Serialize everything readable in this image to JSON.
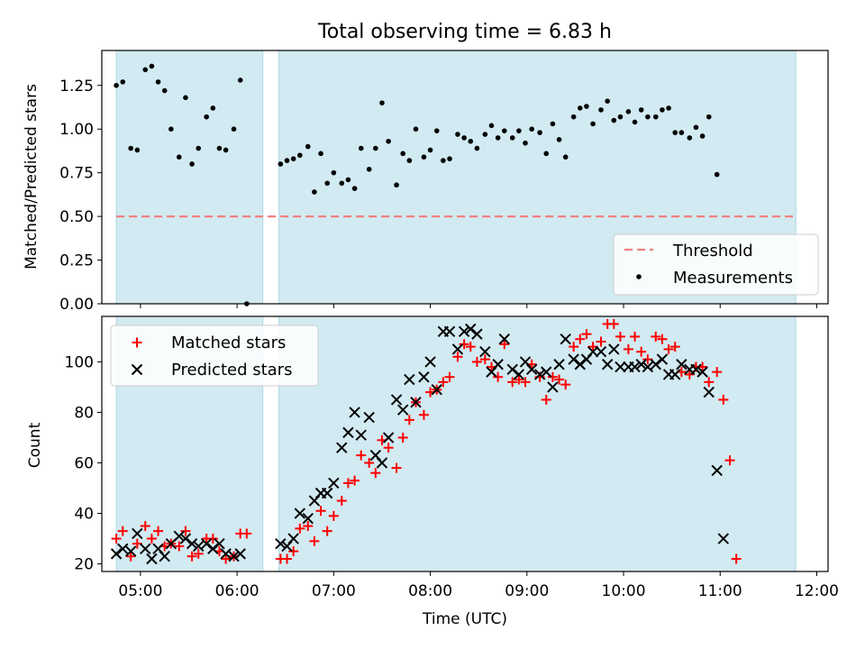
{
  "figure": {
    "title": "Total observing time = 6.83 h",
    "xlabel": "Time (UTC)",
    "x_ticks": [
      "05:00",
      "06:00",
      "07:00",
      "08:00",
      "09:00",
      "10:00",
      "11:00",
      "12:00"
    ]
  },
  "colors": {
    "span": "#add8e6",
    "threshold": "#f08080",
    "matched": "#ff0000",
    "predicted": "#000000",
    "points": "#000000"
  },
  "chart_data": [
    {
      "type": "scatter",
      "ylabel": "Matched/Predicted stars",
      "xlim": [
        "04:36",
        "12:07"
      ],
      "ylim": [
        0,
        1.45
      ],
      "y_ticks": [
        "0.00",
        "0.25",
        "0.50",
        "0.75",
        "1.00",
        "1.25"
      ],
      "observing_spans": [
        [
          "04:45",
          "06:16"
        ],
        [
          "06:26",
          "11:47"
        ]
      ],
      "threshold": 0.5,
      "legend_position": "bottom-right",
      "legend": [
        "Threshold",
        "Measurements"
      ],
      "series": [
        {
          "name": "Measurements",
          "points": [
            [
              "04:45",
              1.25
            ],
            [
              "04:49",
              1.27
            ],
            [
              "04:54",
              0.89
            ],
            [
              "04:58",
              0.88
            ],
            [
              "05:03",
              1.34
            ],
            [
              "05:07",
              1.36
            ],
            [
              "05:11",
              1.27
            ],
            [
              "05:15",
              1.22
            ],
            [
              "05:19",
              1.0
            ],
            [
              "05:24",
              0.84
            ],
            [
              "05:28",
              1.18
            ],
            [
              "05:32",
              0.8
            ],
            [
              "05:36",
              0.89
            ],
            [
              "05:41",
              1.07
            ],
            [
              "05:45",
              1.12
            ],
            [
              "05:49",
              0.89
            ],
            [
              "05:53",
              0.88
            ],
            [
              "05:58",
              1.0
            ],
            [
              "06:02",
              1.28
            ],
            [
              "06:06",
              0.0
            ],
            [
              "06:27",
              0.8
            ],
            [
              "06:31",
              0.82
            ],
            [
              "06:35",
              0.83
            ],
            [
              "06:39",
              0.85
            ],
            [
              "06:44",
              0.9
            ],
            [
              "06:48",
              0.64
            ],
            [
              "06:52",
              0.86
            ],
            [
              "06:56",
              0.69
            ],
            [
              "07:00",
              0.75
            ],
            [
              "07:05",
              0.69
            ],
            [
              "07:09",
              0.71
            ],
            [
              "07:13",
              0.66
            ],
            [
              "07:17",
              0.89
            ],
            [
              "07:22",
              0.77
            ],
            [
              "07:26",
              0.89
            ],
            [
              "07:30",
              1.15
            ],
            [
              "07:34",
              0.93
            ],
            [
              "07:39",
              0.68
            ],
            [
              "07:43",
              0.86
            ],
            [
              "07:47",
              0.82
            ],
            [
              "07:51",
              1.0
            ],
            [
              "07:56",
              0.84
            ],
            [
              "08:00",
              0.88
            ],
            [
              "08:04",
              0.99
            ],
            [
              "08:08",
              0.82
            ],
            [
              "08:12",
              0.83
            ],
            [
              "08:17",
              0.97
            ],
            [
              "08:21",
              0.95
            ],
            [
              "08:25",
              0.93
            ],
            [
              "08:29",
              0.89
            ],
            [
              "08:34",
              0.97
            ],
            [
              "08:38",
              1.02
            ],
            [
              "08:42",
              0.95
            ],
            [
              "08:46",
              0.99
            ],
            [
              "08:51",
              0.95
            ],
            [
              "08:55",
              0.99
            ],
            [
              "08:59",
              0.92
            ],
            [
              "09:03",
              1.0
            ],
            [
              "09:08",
              0.98
            ],
            [
              "09:12",
              0.86
            ],
            [
              "09:16",
              1.03
            ],
            [
              "09:20",
              0.94
            ],
            [
              "09:24",
              0.84
            ],
            [
              "09:29",
              1.07
            ],
            [
              "09:33",
              1.12
            ],
            [
              "09:37",
              1.13
            ],
            [
              "09:41",
              1.03
            ],
            [
              "09:46",
              1.11
            ],
            [
              "09:50",
              1.16
            ],
            [
              "09:54",
              1.05
            ],
            [
              "09:58",
              1.07
            ],
            [
              "10:03",
              1.1
            ],
            [
              "10:07",
              1.04
            ],
            [
              "10:11",
              1.11
            ],
            [
              "10:15",
              1.07
            ],
            [
              "10:20",
              1.07
            ],
            [
              "10:24",
              1.11
            ],
            [
              "10:28",
              1.12
            ],
            [
              "10:32",
              0.98
            ],
            [
              "10:36",
              0.98
            ],
            [
              "10:41",
              0.95
            ],
            [
              "10:45",
              1.01
            ],
            [
              "10:49",
              0.96
            ],
            [
              "10:53",
              1.07
            ],
            [
              "10:58",
              0.74
            ]
          ]
        }
      ]
    },
    {
      "type": "scatter",
      "ylabel": "Count",
      "xlim": [
        "04:36",
        "12:07"
      ],
      "ylim": [
        17,
        118
      ],
      "y_ticks": [
        "20",
        "40",
        "60",
        "80",
        "100"
      ],
      "observing_spans": [
        [
          "04:45",
          "06:16"
        ],
        [
          "06:26",
          "11:47"
        ]
      ],
      "legend_position": "top-left",
      "legend": [
        "Matched stars",
        "Predicted stars"
      ],
      "series": [
        {
          "name": "Matched stars",
          "marker": "+",
          "points": [
            [
              "04:45",
              30
            ],
            [
              "04:49",
              33
            ],
            [
              "04:54",
              23
            ],
            [
              "04:58",
              28
            ],
            [
              "05:03",
              35
            ],
            [
              "05:07",
              30
            ],
            [
              "05:11",
              33
            ],
            [
              "05:15",
              27
            ],
            [
              "05:19",
              28
            ],
            [
              "05:24",
              27
            ],
            [
              "05:28",
              33
            ],
            [
              "05:32",
              23
            ],
            [
              "05:36",
              24
            ],
            [
              "05:41",
              30
            ],
            [
              "05:45",
              30
            ],
            [
              "05:49",
              25
            ],
            [
              "05:53",
              22
            ],
            [
              "05:58",
              23
            ],
            [
              "06:02",
              32
            ],
            [
              "06:06",
              32
            ],
            [
              "06:27",
              22
            ],
            [
              "06:31",
              22
            ],
            [
              "06:35",
              25
            ],
            [
              "06:39",
              34
            ],
            [
              "06:44",
              35
            ],
            [
              "06:48",
              29
            ],
            [
              "06:52",
              41
            ],
            [
              "06:56",
              33
            ],
            [
              "07:00",
              39
            ],
            [
              "07:05",
              45
            ],
            [
              "07:09",
              52
            ],
            [
              "07:13",
              53
            ],
            [
              "07:17",
              63
            ],
            [
              "07:22",
              60
            ],
            [
              "07:26",
              56
            ],
            [
              "07:30",
              69
            ],
            [
              "07:34",
              66
            ],
            [
              "07:39",
              58
            ],
            [
              "07:43",
              70
            ],
            [
              "07:47",
              77
            ],
            [
              "07:51",
              84
            ],
            [
              "07:56",
              79
            ],
            [
              "08:00",
              88
            ],
            [
              "08:04",
              89
            ],
            [
              "08:08",
              92
            ],
            [
              "08:12",
              94
            ],
            [
              "08:17",
              102
            ],
            [
              "08:21",
              107
            ],
            [
              "08:25",
              106
            ],
            [
              "08:29",
              100
            ],
            [
              "08:34",
              101
            ],
            [
              "08:38",
              98
            ],
            [
              "08:42",
              94
            ],
            [
              "08:46",
              107
            ],
            [
              "08:51",
              92
            ],
            [
              "08:55",
              93
            ],
            [
              "08:59",
              92
            ],
            [
              "09:03",
              99
            ],
            [
              "09:08",
              94
            ],
            [
              "09:12",
              85
            ],
            [
              "09:16",
              94
            ],
            [
              "09:20",
              93
            ],
            [
              "09:24",
              91
            ],
            [
              "09:29",
              106
            ],
            [
              "09:33",
              109
            ],
            [
              "09:37",
              111
            ],
            [
              "09:41",
              106
            ],
            [
              "09:46",
              108
            ],
            [
              "09:50",
              115
            ],
            [
              "09:54",
              115
            ],
            [
              "09:58",
              110
            ],
            [
              "10:03",
              105
            ],
            [
              "10:07",
              110
            ],
            [
              "10:11",
              104
            ],
            [
              "10:15",
              101
            ],
            [
              "10:20",
              110
            ],
            [
              "10:24",
              109
            ],
            [
              "10:28",
              105
            ],
            [
              "10:32",
              106
            ],
            [
              "10:36",
              96
            ],
            [
              "10:41",
              95
            ],
            [
              "10:45",
              98
            ],
            [
              "10:49",
              98
            ],
            [
              "10:53",
              92
            ],
            [
              "10:58",
              96
            ],
            [
              "11:02",
              85
            ],
            [
              "11:06",
              61
            ],
            [
              "11:10",
              22
            ]
          ]
        },
        {
          "name": "Predicted stars",
          "marker": "x",
          "points": [
            [
              "04:45",
              24
            ],
            [
              "04:49",
              26
            ],
            [
              "04:54",
              25
            ],
            [
              "04:58",
              32
            ],
            [
              "05:03",
              26
            ],
            [
              "05:07",
              22
            ],
            [
              "05:11",
              26
            ],
            [
              "05:15",
              23
            ],
            [
              "05:19",
              28
            ],
            [
              "05:24",
              31
            ],
            [
              "05:28",
              30
            ],
            [
              "05:32",
              28
            ],
            [
              "05:36",
              27
            ],
            [
              "05:41",
              28
            ],
            [
              "05:45",
              26
            ],
            [
              "05:49",
              28
            ],
            [
              "05:53",
              24
            ],
            [
              "05:58",
              23
            ],
            [
              "06:02",
              24
            ],
            [
              "06:27",
              28
            ],
            [
              "06:31",
              27
            ],
            [
              "06:35",
              30
            ],
            [
              "06:39",
              40
            ],
            [
              "06:44",
              38
            ],
            [
              "06:48",
              45
            ],
            [
              "06:52",
              48
            ],
            [
              "06:56",
              48
            ],
            [
              "07:00",
              52
            ],
            [
              "07:05",
              66
            ],
            [
              "07:09",
              72
            ],
            [
              "07:13",
              80
            ],
            [
              "07:17",
              71
            ],
            [
              "07:22",
              78
            ],
            [
              "07:26",
              63
            ],
            [
              "07:30",
              60
            ],
            [
              "07:34",
              70
            ],
            [
              "07:39",
              85
            ],
            [
              "07:43",
              81
            ],
            [
              "07:47",
              93
            ],
            [
              "07:51",
              84
            ],
            [
              "07:56",
              94
            ],
            [
              "08:00",
              100
            ],
            [
              "08:04",
              89
            ],
            [
              "08:08",
              112
            ],
            [
              "08:12",
              112
            ],
            [
              "08:17",
              105
            ],
            [
              "08:21",
              112
            ],
            [
              "08:25",
              113
            ],
            [
              "08:29",
              111
            ],
            [
              "08:34",
              104
            ],
            [
              "08:38",
              96
            ],
            [
              "08:42",
              99
            ],
            [
              "08:46",
              109
            ],
            [
              "08:51",
              97
            ],
            [
              "08:55",
              95
            ],
            [
              "08:59",
              100
            ],
            [
              "09:03",
              97
            ],
            [
              "09:08",
              95
            ],
            [
              "09:12",
              96
            ],
            [
              "09:16",
              90
            ],
            [
              "09:20",
              99
            ],
            [
              "09:24",
              109
            ],
            [
              "09:29",
              101
            ],
            [
              "09:33",
              99
            ],
            [
              "09:37",
              101
            ],
            [
              "09:41",
              104
            ],
            [
              "09:46",
              104
            ],
            [
              "09:50",
              99
            ],
            [
              "09:54",
              105
            ],
            [
              "09:58",
              98
            ],
            [
              "10:03",
              98
            ],
            [
              "10:07",
              98
            ],
            [
              "10:11",
              99
            ],
            [
              "10:15",
              98
            ],
            [
              "10:20",
              99
            ],
            [
              "10:24",
              101
            ],
            [
              "10:28",
              95
            ],
            [
              "10:32",
              95
            ],
            [
              "10:36",
              99
            ],
            [
              "10:41",
              97
            ],
            [
              "10:45",
              97
            ],
            [
              "10:49",
              96
            ],
            [
              "10:53",
              88
            ],
            [
              "10:58",
              57
            ],
            [
              "11:02",
              30
            ]
          ]
        }
      ]
    }
  ]
}
